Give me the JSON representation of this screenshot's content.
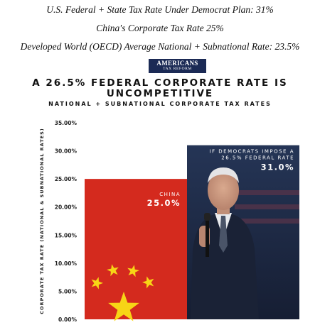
{
  "headlines": [
    "U.S. Federal + State Tax Rate Under Democrat Plan: 31%",
    "China's Corporate Tax Rate 25%",
    "Developed World (OECD) Average National + Subnational Rate: 23.5%"
  ],
  "logo": {
    "line1": "AMERICANS",
    "line2": "TAX REFORM"
  },
  "chart_data": {
    "type": "bar",
    "title_lines": [
      "A 26.5% FEDERAL CORPORATE RATE IS",
      "UNCOMPETITIVE"
    ],
    "subtitle": "NATIONAL + SUBNATIONAL CORPORATE TAX RATES",
    "ylabel": "CORPORATE TAX RATE (NATIONAL & SUBNATIONAL RATES)",
    "xlabel": "",
    "ylim": [
      0,
      35
    ],
    "yticks": [
      "0.00%",
      "5.00%",
      "10.00%",
      "15.00%",
      "20.00%",
      "25.00%",
      "30.00%",
      "35.00%"
    ],
    "categories": [
      "China",
      "If Democrats impose a 26.5% federal rate"
    ],
    "values": [
      25.0,
      31.0
    ],
    "bar_labels": [
      {
        "lines": [
          "CHINA"
        ],
        "value_text": "25.0%"
      },
      {
        "lines": [
          "IF DEMOCRATS IMPOSE A",
          "26.5% FEDERAL RATE"
        ],
        "value_text": "31.0%"
      }
    ],
    "colors": {
      "china": "#d42a1e",
      "us": "#1e2b4a",
      "stars": "#f7d516"
    },
    "grid": false,
    "legend": "none"
  }
}
